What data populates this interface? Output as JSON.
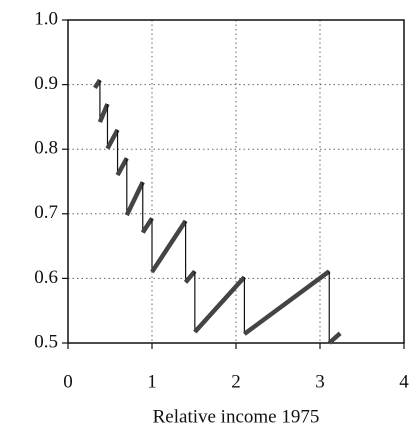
{
  "chart_data": {
    "type": "line",
    "x_label": "Relative income 1975",
    "x": [
      0.32,
      0.38,
      0.38,
      0.47,
      0.47,
      0.59,
      0.59,
      0.7,
      0.7,
      0.89,
      0.89,
      1.0,
      1.0,
      1.4,
      1.4,
      1.51,
      1.51,
      2.1,
      2.1,
      3.11,
      3.11,
      3.24
    ],
    "series": [
      {
        "color": "#444444",
        "values": [
          0.895,
          0.907,
          0.842,
          0.87,
          0.801,
          0.83,
          0.76,
          0.786,
          0.698,
          0.749,
          0.671,
          0.693,
          0.61,
          0.689,
          0.594,
          0.611,
          0.517,
          0.602,
          0.514,
          0.611,
          0.5,
          0.515
        ]
      }
    ],
    "xlim": [
      0,
      4
    ],
    "xticks": [
      0,
      1,
      2,
      3,
      4
    ],
    "ylim": [
      0.5,
      1.0
    ],
    "yticks": [
      0.5,
      0.6,
      0.7,
      0.8,
      0.9,
      {
        "value": 1.0,
        "label": "1.0"
      }
    ],
    "grid": true
  }
}
